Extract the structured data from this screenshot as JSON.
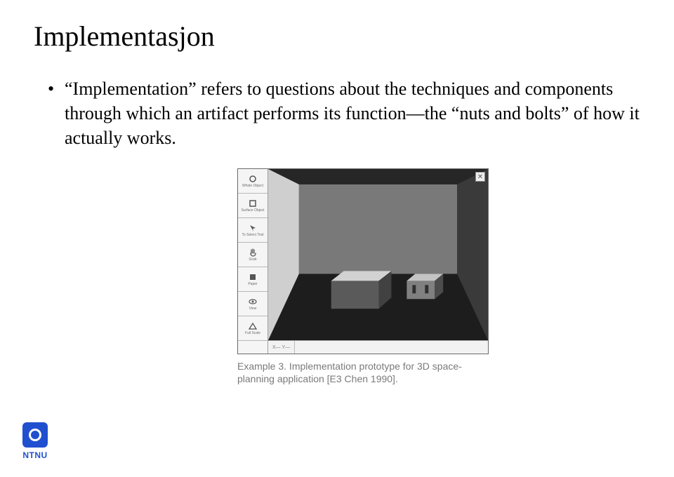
{
  "title": "Implementasjon",
  "bullet_text": "“Implementation” refers to questions about the techniques and components through which an artifact performs its function—the “nuts and bolts” of how it actually works.",
  "figure": {
    "toolbar_items": [
      {
        "icon": "circle",
        "label": "Whole Object"
      },
      {
        "icon": "square-open",
        "label": "Surface Object"
      },
      {
        "icon": "arrow",
        "label": "To Select Tool"
      },
      {
        "icon": "hand",
        "label": "Grab"
      },
      {
        "icon": "square",
        "label": "Paper"
      },
      {
        "icon": "eye",
        "label": "View"
      },
      {
        "icon": "triangle",
        "label": "Full Scale"
      }
    ],
    "close_glyph": "✕",
    "status_text": "X—     Y—",
    "scene": {
      "background_color": "#262626",
      "floor_color": "#1d1d1d",
      "left_wall_color": "#cfcfcf",
      "back_wall_color": "#797979",
      "left_box_colors": {
        "top": "#d2d2d2",
        "front": "#5a5a5a",
        "side": "#414141"
      },
      "right_box_colors": {
        "top": "#c4c4c4",
        "front": "#808080",
        "side": "#4c4c4c"
      }
    }
  },
  "caption": "Example 3. Implementation prototype for 3D space-planning application [E3 Chen 1990].",
  "logo_label": "NTNU",
  "colors": {
    "text": "#000000",
    "caption": "#7a7a7a",
    "logo": "#2050d0"
  }
}
